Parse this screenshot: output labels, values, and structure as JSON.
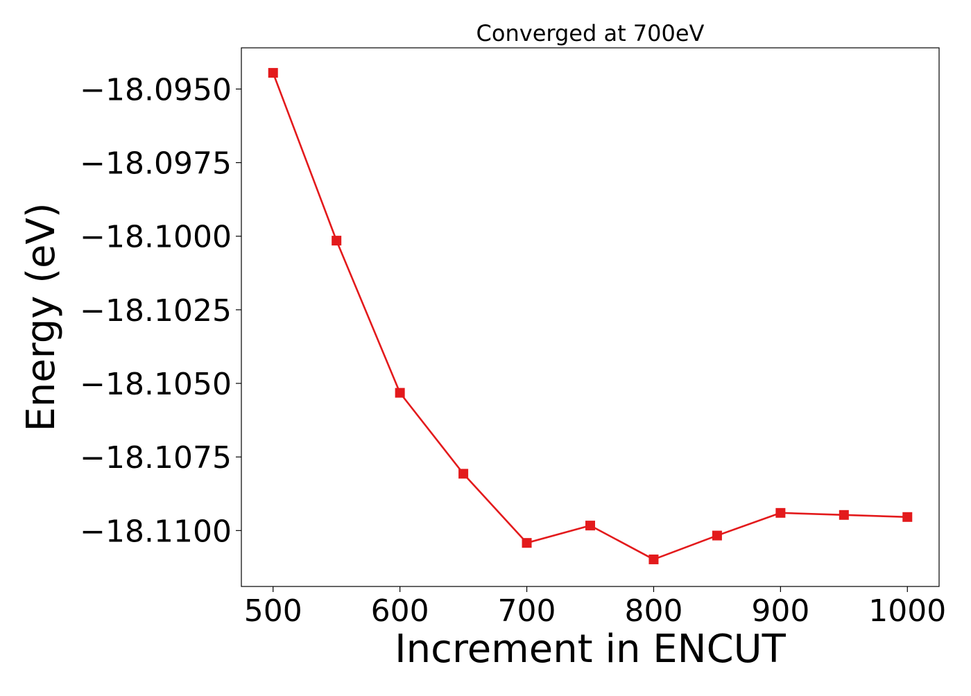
{
  "chart_data": {
    "type": "line",
    "title": "Converged at 700eV",
    "xlabel": "Increment in ENCUT",
    "ylabel": "Energy (eV)",
    "x": [
      500,
      550,
      600,
      650,
      700,
      750,
      800,
      850,
      900,
      950,
      1000
    ],
    "series": [
      {
        "values": [
          -18.09445,
          -18.10015,
          -18.10532,
          -18.10807,
          -18.11042,
          -18.10983,
          -18.11098,
          -18.11017,
          -18.1094,
          -18.10947,
          -18.10954
        ],
        "color": "#e31a1c",
        "marker": "square"
      }
    ],
    "xlim": [
      475,
      1025
    ],
    "ylim": [
      -18.1119,
      -18.0936
    ],
    "xticks": [
      500,
      600,
      700,
      800,
      900,
      1000
    ],
    "xtick_labels": [
      "500",
      "600",
      "700",
      "800",
      "900",
      "1000"
    ],
    "yticks": [
      -18.095,
      -18.0975,
      -18.1,
      -18.1025,
      -18.105,
      -18.1075,
      -18.11
    ],
    "ytick_labels": [
      "−18.0950",
      "−18.0975",
      "−18.1000",
      "−18.1025",
      "−18.1050",
      "−18.1075",
      "−18.1100"
    ],
    "grid": false,
    "legend": "none"
  }
}
